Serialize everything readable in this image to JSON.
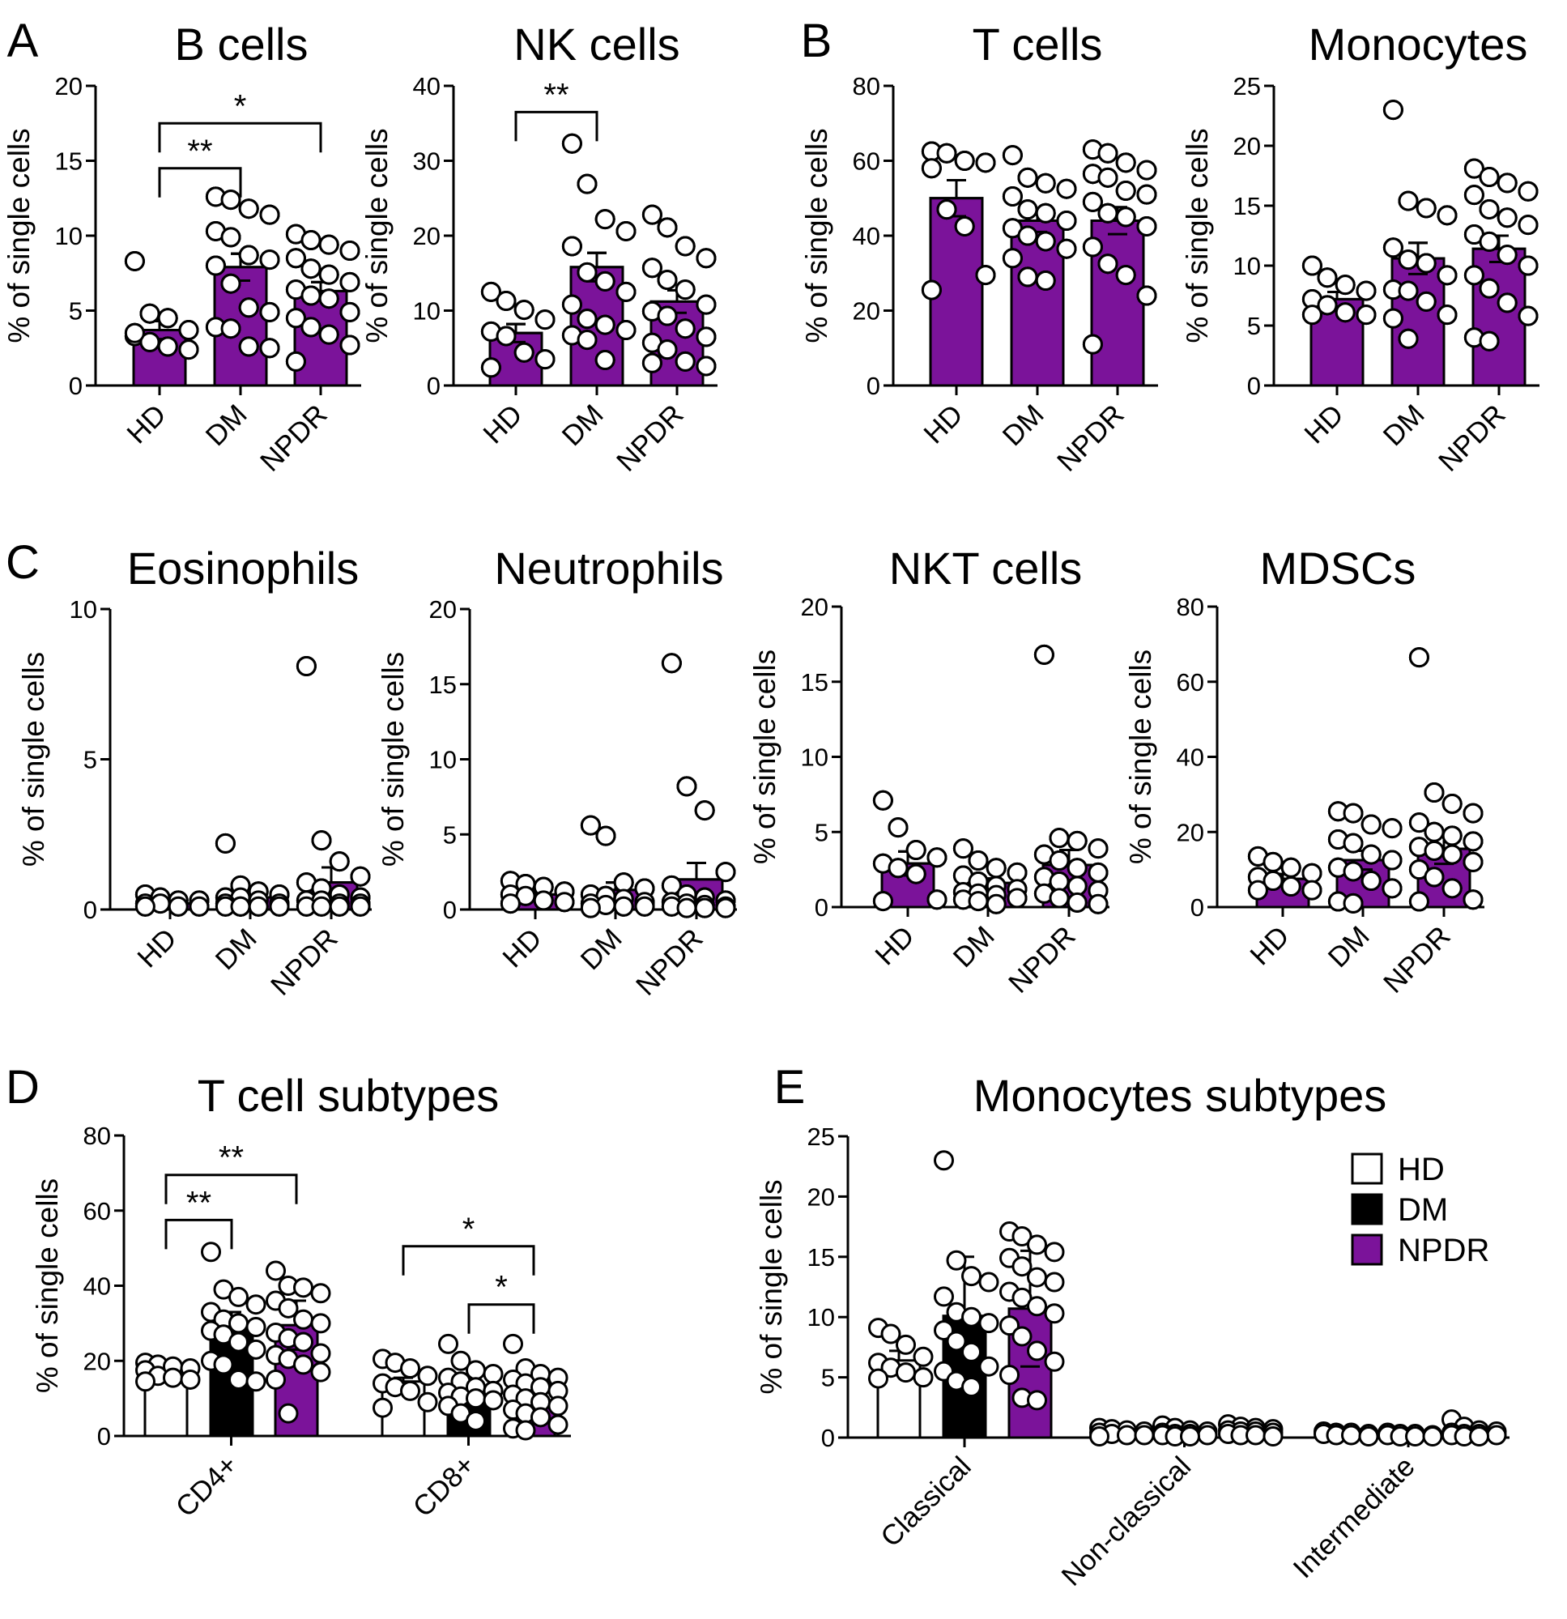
{
  "figure": {
    "series_colors": {
      "HD": "#ffffff",
      "DM": "#000000",
      "NPDR": "#7b139a"
    },
    "legend": [
      "HD",
      "DM",
      "NPDR"
    ]
  },
  "chart_data": [
    {
      "id": "b-cells",
      "panel_letter": "A",
      "type": "bar",
      "title": "B cells",
      "ylabel": "% of single cells",
      "ylim": [
        0,
        20
      ],
      "yticks": [
        0,
        5,
        10,
        15,
        20
      ],
      "categories": [
        "HD",
        "DM",
        "NPDR"
      ],
      "series": [
        "HD",
        "DM",
        "NPDR"
      ],
      "values": [
        3.7,
        7.9,
        6.3
      ],
      "errors": [
        0.6,
        0.9,
        0.6
      ],
      "points": [
        [
          8.3,
          4.8,
          4.5,
          3.7,
          3.3,
          2.9,
          2.6,
          2.4,
          3.5
        ],
        [
          12.6,
          12.4,
          11.8,
          11.4,
          10.3,
          9.9,
          8.7,
          8.4,
          8.0,
          6.8,
          5.2,
          4.9,
          3.9,
          3.8,
          2.6,
          2.5
        ],
        [
          10.1,
          9.7,
          9.4,
          9.0,
          8.5,
          7.8,
          7.4,
          6.9,
          6.4,
          6.0,
          5.8,
          4.9,
          4.5,
          3.9,
          3.4,
          2.7,
          1.6
        ]
      ],
      "brackets": [
        {
          "from": 0,
          "to": 1,
          "label": "**",
          "y": 14.5
        },
        {
          "from": 0,
          "to": 2,
          "label": "*",
          "y": 17.5
        }
      ]
    },
    {
      "id": "nk-cells",
      "type": "bar",
      "title": "NK cells",
      "ylabel": "% of single cells",
      "ylim": [
        0,
        40
      ],
      "yticks": [
        0,
        10,
        20,
        30,
        40
      ],
      "categories": [
        "HD",
        "DM",
        "NPDR"
      ],
      "series": [
        "HD",
        "DM",
        "NPDR"
      ],
      "values": [
        7.0,
        15.8,
        11.2
      ],
      "errors": [
        1.2,
        1.9,
        1.5
      ],
      "points": [
        [
          12.5,
          11.3,
          10.1,
          8.8,
          7.2,
          6.6,
          4.4,
          3.5,
          2.4
        ],
        [
          32.3,
          26.9,
          22.2,
          20.6,
          18.6,
          15.1,
          13.9,
          12.5,
          10.8,
          8.9,
          8.1,
          7.4,
          6.7,
          6.1,
          3.4
        ],
        [
          22.8,
          21.1,
          18.6,
          17.0,
          15.7,
          14.1,
          12.8,
          10.8,
          9.9,
          9.3,
          7.6,
          6.5,
          5.7,
          4.8,
          3.2,
          2.6,
          3.0
        ]
      ],
      "brackets": [
        {
          "from": 0,
          "to": 1,
          "label": "**",
          "y": 36.5
        }
      ]
    },
    {
      "id": "t-cells",
      "panel_letter": "B",
      "type": "bar",
      "title": "T cells",
      "ylabel": "% of single cells",
      "ylim": [
        0,
        80
      ],
      "yticks": [
        0,
        20,
        40,
        60,
        80
      ],
      "categories": [
        "HD",
        "DM",
        "NPDR"
      ],
      "series": [
        "HD",
        "DM",
        "NPDR"
      ],
      "values": [
        50,
        44,
        44
      ],
      "errors": [
        4.8,
        3.0,
        3.6
      ],
      "points": [
        [
          62.5,
          62.0,
          60.0,
          59.5,
          58.0,
          47.0,
          42.5,
          29.5,
          25.5
        ],
        [
          61.5,
          55.5,
          54.0,
          52.5,
          50.5,
          47.0,
          46.0,
          44.0,
          42.0,
          40.0,
          38.5,
          36.5,
          34.0,
          29.0,
          28.0
        ],
        [
          63.0,
          62.0,
          59.5,
          57.5,
          56.5,
          55.5,
          52.0,
          51.0,
          49.0,
          46.0,
          45.0,
          42.5,
          37.0,
          32.5,
          29.5,
          24.0,
          11.0
        ]
      ],
      "brackets": []
    },
    {
      "id": "monocytes",
      "type": "bar",
      "title": "Monocytes",
      "ylabel": "% of single cells",
      "ylim": [
        0,
        25
      ],
      "yticks": [
        0,
        5,
        10,
        15,
        20,
        25
      ],
      "categories": [
        "HD",
        "DM",
        "NPDR"
      ],
      "series": [
        "HD",
        "DM",
        "NPDR"
      ],
      "values": [
        7.2,
        10.6,
        11.4
      ],
      "errors": [
        0.6,
        1.3,
        1.1
      ],
      "points": [
        [
          10.0,
          9.0,
          8.4,
          7.9,
          7.2,
          6.7,
          6.1,
          5.9,
          5.9
        ],
        [
          23.0,
          15.4,
          14.8,
          14.2,
          11.5,
          10.5,
          10.2,
          9.2,
          8.0,
          7.9,
          7.0,
          5.9,
          5.6,
          3.9
        ],
        [
          18.1,
          17.4,
          16.9,
          16.2,
          15.9,
          14.7,
          14.0,
          13.4,
          12.6,
          12.0,
          10.9,
          10.0,
          9.2,
          8.1,
          6.9,
          5.8,
          4.0,
          3.7
        ]
      ],
      "brackets": []
    },
    {
      "id": "eosinophils",
      "panel_letter": "C",
      "type": "bar",
      "title": "Eosinophils",
      "ylabel": "% of single cells",
      "ylim": [
        0,
        10
      ],
      "yticks": [
        0,
        5,
        10
      ],
      "categories": [
        "HD",
        "DM",
        "NPDR"
      ],
      "series": [
        "HD",
        "DM",
        "NPDR"
      ],
      "values": [
        0.2,
        0.4,
        0.9
      ],
      "errors": [
        0.05,
        0.15,
        0.5
      ],
      "points": [
        [
          0.5,
          0.4,
          0.3,
          0.3,
          0.2,
          0.2,
          0.1,
          0.1,
          0.1
        ],
        [
          2.2,
          0.8,
          0.6,
          0.5,
          0.4,
          0.4,
          0.3,
          0.2,
          0.2,
          0.1,
          0.1,
          0.1,
          0.1,
          0.1
        ],
        [
          8.1,
          2.3,
          1.6,
          1.1,
          0.9,
          0.7,
          0.5,
          0.4,
          0.3,
          0.3,
          0.2,
          0.2,
          0.1,
          0.1,
          0.1,
          0.1
        ]
      ],
      "brackets": []
    },
    {
      "id": "neutrophils",
      "type": "bar",
      "title": "Neutrophils",
      "ylabel": "% of single cells",
      "ylim": [
        0,
        20
      ],
      "yticks": [
        0,
        5,
        10,
        15,
        20
      ],
      "categories": [
        "HD",
        "DM",
        "NPDR"
      ],
      "series": [
        "HD",
        "DM",
        "NPDR"
      ],
      "values": [
        1.0,
        1.3,
        2.0
      ],
      "errors": [
        0.2,
        0.5,
        1.1
      ],
      "points": [
        [
          1.9,
          1.7,
          1.5,
          1.2,
          1.0,
          0.9,
          0.6,
          0.5,
          0.4
        ],
        [
          5.6,
          4.9,
          1.8,
          1.4,
          1.0,
          0.9,
          0.7,
          0.5,
          0.4,
          0.3,
          0.2,
          0.2,
          0.1
        ],
        [
          16.4,
          8.2,
          6.6,
          2.5,
          1.6,
          1.0,
          0.8,
          0.6,
          0.5,
          0.4,
          0.3,
          0.2,
          0.2,
          0.1,
          0.1,
          0.1
        ]
      ],
      "brackets": []
    },
    {
      "id": "nkt-cells",
      "type": "bar",
      "title": "NKT cells",
      "ylabel": "% of single cells",
      "ylim": [
        0,
        20
      ],
      "yticks": [
        0,
        5,
        10,
        15,
        20
      ],
      "categories": [
        "HD",
        "DM",
        "NPDR"
      ],
      "series": [
        "HD",
        "DM",
        "NPDR"
      ],
      "values": [
        2.9,
        1.6,
        2.8
      ],
      "errors": [
        0.8,
        0.3,
        1.0
      ],
      "points": [
        [
          7.1,
          5.3,
          3.8,
          3.3,
          2.9,
          2.6,
          2.2,
          0.5,
          0.4
        ],
        [
          3.9,
          3.1,
          2.6,
          2.3,
          2.1,
          1.7,
          1.4,
          1.2,
          1.0,
          0.9,
          0.8,
          0.6,
          0.5,
          0.4,
          0.2
        ],
        [
          16.8,
          4.6,
          4.4,
          3.9,
          3.5,
          3.1,
          2.6,
          2.3,
          2.0,
          1.7,
          1.4,
          1.1,
          0.9,
          0.6,
          0.3,
          0.2
        ]
      ],
      "brackets": []
    },
    {
      "id": "mdscs",
      "type": "bar",
      "title": "MDSCs",
      "ylabel": "% of single cells",
      "ylim": [
        0,
        80
      ],
      "yticks": [
        0,
        20,
        40,
        60,
        80
      ],
      "categories": [
        "HD",
        "DM",
        "NPDR"
      ],
      "series": [
        "HD",
        "DM",
        "NPDR"
      ],
      "values": [
        7.5,
        12.5,
        15.5
      ],
      "errors": [
        1.3,
        2.5,
        4.0
      ],
      "points": [
        [
          13.5,
          12.0,
          10.5,
          9.0,
          8.0,
          7.0,
          5.5,
          4.5,
          4.5
        ],
        [
          25.5,
          25.0,
          22.0,
          21.0,
          18.0,
          17.0,
          14.0,
          12.5,
          10.5,
          9.5,
          7.0,
          5.0,
          1.5,
          1.0
        ],
        [
          66.5,
          30.5,
          27.5,
          25.0,
          22.5,
          20.0,
          19.0,
          17.5,
          16.0,
          15.0,
          14.0,
          12.0,
          10.0,
          8.0,
          5.0,
          2.0,
          1.5
        ]
      ],
      "brackets": []
    },
    {
      "id": "t-cell-subtypes",
      "panel_letter": "D",
      "type": "grouped_bar",
      "title": "T cell subtypes",
      "ylabel": "% of single cells",
      "ylim": [
        0,
        80
      ],
      "yticks": [
        0,
        20,
        40,
        60,
        80
      ],
      "categories": [
        "CD4+",
        "CD8+"
      ],
      "series": [
        "HD",
        "DM",
        "NPDR"
      ],
      "values": [
        [
          17.5,
          29.5,
          29.5
        ],
        [
          14.5,
          12.0,
          8.5
        ]
      ],
      "errors": [
        [
          1.0,
          3.5,
          6.5
        ],
        [
          1.0,
          1.0,
          1.0
        ]
      ],
      "points": [
        [
          [
            19.5,
            19.0,
            18.5,
            18.0,
            17.5,
            16.0,
            15.5,
            15.0,
            14.5
          ],
          [
            49.0,
            39.0,
            37.0,
            35.0,
            33.0,
            31.0,
            30.0,
            29.0,
            28.0,
            27.0,
            25.0,
            23.0,
            20.0,
            19.0,
            15.0,
            14.5
          ],
          [
            44.0,
            40.0,
            39.5,
            38.0,
            36.0,
            34.0,
            31.0,
            30.0,
            27.5,
            26.0,
            25.0,
            22.0,
            21.5,
            20.5,
            19.0,
            17.0,
            15.0,
            6.0
          ]
        ],
        [
          [
            20.5,
            19.5,
            18.0,
            16.0,
            14.0,
            13.0,
            12.0,
            9.0,
            7.5
          ],
          [
            24.5,
            20.0,
            17.5,
            16.5,
            15.5,
            14.5,
            13.0,
            12.0,
            11.5,
            10.5,
            10.0,
            9.5,
            8.0,
            6.0,
            4.0
          ],
          [
            24.5,
            18.0,
            16.5,
            15.5,
            15.0,
            14.0,
            13.0,
            12.0,
            11.0,
            10.0,
            9.0,
            8.0,
            7.0,
            6.0,
            5.0,
            3.0,
            2.0,
            1.5
          ]
        ]
      ],
      "brackets": [
        {
          "cat": 0,
          "from": 0,
          "to": 1,
          "label": "**",
          "y": 57.5
        },
        {
          "cat": 0,
          "from": 0,
          "to": 2,
          "label": "**",
          "y": 69.5
        },
        {
          "cat": 1,
          "from": 0,
          "to": 2,
          "label": "*",
          "y": 50.5
        },
        {
          "cat": 1,
          "from": 1,
          "to": 2,
          "label": "*",
          "y": 35.0
        }
      ]
    },
    {
      "id": "monocytes-subtypes",
      "panel_letter": "E",
      "type": "grouped_bar",
      "title": "Monocytes subtypes",
      "ylabel": "% of single cells",
      "ylim": [
        0,
        25
      ],
      "yticks": [
        0,
        5,
        10,
        15,
        20,
        25
      ],
      "categories": [
        "Classical",
        "Non-classical",
        "Intermediate"
      ],
      "series": [
        "HD",
        "DM",
        "NPDR"
      ],
      "values": [
        [
          6.4,
          10.1,
          10.7
        ],
        [
          0.4,
          0.3,
          0.5
        ],
        [
          0.3,
          0.2,
          0.4
        ]
      ],
      "errors": [
        [
          0.8,
          4.9,
          4.8
        ],
        [
          0.1,
          0.1,
          0.1
        ],
        [
          0.05,
          0.05,
          0.1
        ]
      ],
      "points": [
        [
          [
            9.1,
            8.6,
            7.7,
            6.7,
            6.2,
            5.8,
            5.4,
            5.0,
            4.9
          ],
          [
            23.0,
            14.7,
            13.4,
            12.9,
            11.7,
            10.4,
            10.0,
            9.5,
            8.9,
            8.0,
            7.1,
            5.9,
            5.5,
            4.7,
            4.2
          ],
          [
            17.1,
            16.7,
            16.0,
            15.4,
            14.9,
            14.2,
            13.3,
            12.9,
            12.1,
            11.6,
            10.9,
            10.3,
            9.3,
            8.4,
            7.2,
            6.3,
            5.2,
            3.3,
            3.1
          ]
        ],
        [
          [
            0.8,
            0.7,
            0.6,
            0.5,
            0.4,
            0.3,
            0.2,
            0.2,
            0.1
          ],
          [
            1.0,
            0.8,
            0.6,
            0.5,
            0.4,
            0.3,
            0.3,
            0.2,
            0.2,
            0.1,
            0.1
          ],
          [
            1.1,
            0.9,
            0.8,
            0.7,
            0.6,
            0.5,
            0.5,
            0.4,
            0.3,
            0.2,
            0.2,
            0.1
          ]
        ],
        [
          [
            0.5,
            0.4,
            0.4,
            0.3,
            0.3,
            0.2,
            0.2,
            0.1
          ],
          [
            0.4,
            0.3,
            0.3,
            0.2,
            0.2,
            0.1,
            0.1,
            0.1
          ],
          [
            1.5,
            0.9,
            0.6,
            0.5,
            0.4,
            0.3,
            0.3,
            0.2,
            0.2,
            0.1,
            0.1
          ]
        ]
      ],
      "brackets": []
    }
  ]
}
